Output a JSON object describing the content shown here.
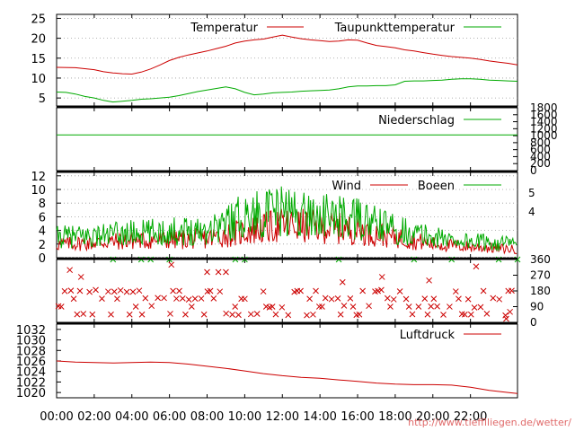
{
  "chart_data": [
    {
      "type": "line",
      "panel": "temperature",
      "yticks": [
        5,
        10,
        15,
        20,
        25
      ],
      "ylim": [
        3,
        26
      ],
      "grid": true,
      "legend_placement": "top",
      "series": [
        {
          "name": "Temperatur",
          "color": "#cc0000",
          "points": [
            [
              0,
              12.7
            ],
            [
              1,
              12.6
            ],
            [
              2,
              12.1
            ],
            [
              2.5,
              11.6
            ],
            [
              3,
              11.3
            ],
            [
              3.5,
              11.1
            ],
            [
              4,
              11.0
            ],
            [
              4.5,
              11.5
            ],
            [
              5,
              12.3
            ],
            [
              5.5,
              13.3
            ],
            [
              6,
              14.4
            ],
            [
              6.5,
              15.2
            ],
            [
              7,
              15.8
            ],
            [
              7.5,
              16.3
            ],
            [
              8,
              16.8
            ],
            [
              8.5,
              17.4
            ],
            [
              9,
              18.0
            ],
            [
              9.5,
              18.8
            ],
            [
              10,
              19.3
            ],
            [
              10.5,
              19.6
            ],
            [
              11,
              19.8
            ],
            [
              11.5,
              20.3
            ],
            [
              12,
              20.8
            ],
            [
              12.5,
              20.3
            ],
            [
              13,
              19.9
            ],
            [
              13.5,
              19.6
            ],
            [
              14,
              19.4
            ],
            [
              14.5,
              19.2
            ],
            [
              15,
              19.3
            ],
            [
              15.5,
              19.6
            ],
            [
              16,
              19.5
            ],
            [
              16.5,
              18.8
            ],
            [
              17,
              18.2
            ],
            [
              17.5,
              17.9
            ],
            [
              18,
              17.6
            ],
            [
              18.5,
              17.1
            ],
            [
              19,
              16.8
            ],
            [
              19.5,
              16.4
            ],
            [
              20,
              16.0
            ],
            [
              20.5,
              15.7
            ],
            [
              21,
              15.4
            ],
            [
              21.5,
              15.2
            ],
            [
              22,
              15.0
            ],
            [
              22.5,
              14.7
            ],
            [
              23,
              14.3
            ],
            [
              23.5,
              14.0
            ],
            [
              24,
              13.7
            ],
            [
              24.5,
              13.3
            ]
          ]
        },
        {
          "name": "Taupunkttemperatur",
          "color": "#00aa00",
          "points": [
            [
              0,
              6.5
            ],
            [
              0.5,
              6.4
            ],
            [
              1,
              6.0
            ],
            [
              1.5,
              5.4
            ],
            [
              2,
              5.0
            ],
            [
              2.5,
              4.4
            ],
            [
              3,
              4.0
            ],
            [
              3.5,
              4.2
            ],
            [
              4,
              4.4
            ],
            [
              4.5,
              4.7
            ],
            [
              5,
              4.8
            ],
            [
              5.5,
              5.0
            ],
            [
              6,
              5.2
            ],
            [
              6.5,
              5.6
            ],
            [
              7,
              6.1
            ],
            [
              7.5,
              6.6
            ],
            [
              8,
              7.0
            ],
            [
              8.5,
              7.4
            ],
            [
              9,
              7.8
            ],
            [
              9.5,
              7.3
            ],
            [
              10,
              6.4
            ],
            [
              10.5,
              5.8
            ],
            [
              11,
              6.0
            ],
            [
              11.5,
              6.3
            ],
            [
              12,
              6.4
            ],
            [
              12.5,
              6.5
            ],
            [
              13,
              6.7
            ],
            [
              13.5,
              6.8
            ],
            [
              14,
              6.9
            ],
            [
              14.5,
              7.0
            ],
            [
              15,
              7.3
            ],
            [
              15.5,
              7.8
            ],
            [
              16,
              8.0
            ],
            [
              16.5,
              8.0
            ],
            [
              17,
              8.1
            ],
            [
              17.5,
              8.1
            ],
            [
              18,
              8.3
            ],
            [
              18.5,
              9.2
            ],
            [
              19,
              9.3
            ],
            [
              19.5,
              9.3
            ],
            [
              20,
              9.4
            ],
            [
              20.5,
              9.5
            ],
            [
              21,
              9.7
            ],
            [
              21.5,
              9.8
            ],
            [
              22,
              9.8
            ],
            [
              22.5,
              9.7
            ],
            [
              23,
              9.5
            ],
            [
              23.5,
              9.4
            ],
            [
              24,
              9.3
            ],
            [
              24.5,
              9.2
            ]
          ]
        }
      ]
    },
    {
      "type": "line",
      "panel": "precipitation",
      "yticks": [
        0,
        200,
        400,
        600,
        800,
        1000,
        1200,
        1400,
        1600,
        1800
      ],
      "ylim": [
        0,
        1800
      ],
      "series": [
        {
          "name": "Niederschlag",
          "color": "#00aa00",
          "points": [
            [
              0,
              1020
            ],
            [
              24.5,
              1020
            ]
          ]
        }
      ]
    },
    {
      "type": "line",
      "panel": "wind",
      "yticks": [
        0,
        2,
        4,
        6,
        8,
        10,
        12
      ],
      "ylim": [
        0,
        12.5
      ],
      "grid": true,
      "right_labels": [
        {
          "text": "5",
          "y": 9.5
        },
        {
          "text": "4",
          "y": 6.7
        }
      ],
      "series": [
        {
          "name": "Wind",
          "color": "#cc0000",
          "profile": [
            [
              0,
              2.0
            ],
            [
              2,
              2.2
            ],
            [
              4,
              2.5
            ],
            [
              6,
              2.6
            ],
            [
              8,
              2.8
            ],
            [
              10,
              3.8
            ],
            [
              12,
              4.8
            ],
            [
              14,
              4.5
            ],
            [
              16,
              4.0
            ],
            [
              18,
              3.0
            ],
            [
              20,
              2.0
            ],
            [
              22,
              1.6
            ],
            [
              24.5,
              1.2
            ]
          ]
        },
        {
          "name": "Boeen",
          "color": "#00aa00",
          "profile": [
            [
              0,
              3.0
            ],
            [
              2,
              3.2
            ],
            [
              4,
              3.6
            ],
            [
              6,
              3.8
            ],
            [
              8,
              4.2
            ],
            [
              10,
              6.2
            ],
            [
              12,
              6.8
            ],
            [
              14,
              6.2
            ],
            [
              16,
              5.6
            ],
            [
              18,
              4.2
            ],
            [
              20,
              3.0
            ],
            [
              22,
              2.4
            ],
            [
              24.5,
              2.0
            ]
          ]
        }
      ]
    },
    {
      "type": "scatter",
      "panel": "wind_direction",
      "yticks": [
        0,
        90,
        180,
        270,
        360
      ],
      "ylim": [
        0,
        360
      ],
      "marker": "x",
      "series": [
        {
          "name": "",
          "color": "#cc0000",
          "main_levels": [
            45,
            90,
            135,
            180
          ],
          "strays": [
            [
              8,
              420
            ],
            [
              8.6,
              420
            ],
            [
              9,
              430
            ],
            [
              6.1,
              330
            ],
            [
              0.7,
              300
            ],
            [
              1.3,
              260
            ],
            [
              15.2,
              230
            ],
            [
              17.3,
              260
            ],
            [
              19.8,
              240
            ],
            [
              22.3,
              320
            ],
            [
              23.9,
              20
            ],
            [
              24.1,
              60
            ]
          ]
        },
        {
          "name": "",
          "color": "#00aa00",
          "points": [
            [
              3,
              360
            ],
            [
              4.5,
              360
            ],
            [
              5,
              360
            ],
            [
              6,
              360
            ],
            [
              9.5,
              360
            ],
            [
              10,
              360
            ],
            [
              15,
              360
            ],
            [
              19,
              360
            ],
            [
              21,
              360
            ],
            [
              23.5,
              360
            ],
            [
              24.5,
              360
            ]
          ]
        }
      ]
    },
    {
      "type": "line",
      "panel": "pressure",
      "yticks": [
        1020,
        1022,
        1024,
        1026,
        1028,
        1030,
        1032
      ],
      "ylim": [
        1019,
        1033
      ],
      "series": [
        {
          "name": "Luftdruck",
          "color": "#cc0000",
          "points": [
            [
              0,
              1026.0
            ],
            [
              1,
              1025.8
            ],
            [
              2,
              1025.7
            ],
            [
              3,
              1025.6
            ],
            [
              4,
              1025.7
            ],
            [
              5,
              1025.8
            ],
            [
              6,
              1025.7
            ],
            [
              7,
              1025.4
            ],
            [
              8,
              1025.0
            ],
            [
              9,
              1024.6
            ],
            [
              10,
              1024.1
            ],
            [
              11,
              1023.6
            ],
            [
              12,
              1023.2
            ],
            [
              13,
              1022.9
            ],
            [
              14,
              1022.7
            ],
            [
              15,
              1022.4
            ],
            [
              16,
              1022.1
            ],
            [
              17,
              1021.8
            ],
            [
              18,
              1021.6
            ],
            [
              19,
              1021.5
            ],
            [
              20,
              1021.5
            ],
            [
              21,
              1021.4
            ],
            [
              22,
              1021.0
            ],
            [
              23,
              1020.4
            ],
            [
              24,
              1020.0
            ],
            [
              24.5,
              1019.8
            ]
          ]
        }
      ]
    }
  ],
  "x_axis": {
    "ticks": [
      0,
      2,
      4,
      6,
      8,
      10,
      12,
      14,
      16,
      18,
      20,
      22
    ],
    "labels": [
      "00:00",
      "02:00",
      "04:00",
      "06:00",
      "08:00",
      "10:00",
      "12:00",
      "14:00",
      "16:00",
      "18:00",
      "20:00",
      "22:00"
    ],
    "range_hours": [
      0,
      24.5
    ]
  },
  "source_text": "http://www.tiefflliegen.de/wetter/"
}
